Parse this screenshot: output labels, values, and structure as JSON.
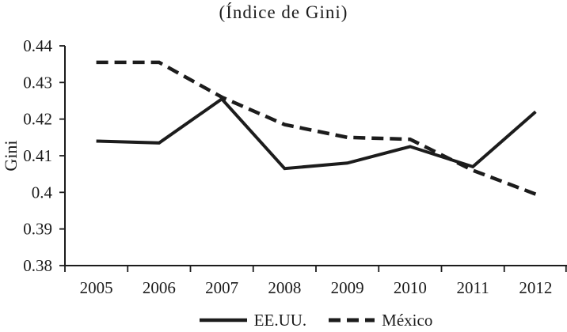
{
  "chart_data": {
    "type": "line",
    "title": "(Índice de Gini)",
    "ylabel": "Gini",
    "xlabel": "",
    "categories": [
      "2005",
      "2006",
      "2007",
      "2008",
      "2009",
      "2010",
      "2011",
      "2012"
    ],
    "series": [
      {
        "name": "EE.UU.",
        "style": "solid",
        "values": [
          0.414,
          0.4135,
          0.4255,
          0.4065,
          0.408,
          0.4125,
          0.407,
          0.422
        ]
      },
      {
        "name": "México",
        "style": "dashed",
        "values": [
          0.4355,
          0.4355,
          0.426,
          0.4185,
          0.415,
          0.4145,
          0.406,
          0.3995
        ]
      }
    ],
    "y_axis": {
      "min": 0.38,
      "max": 0.44,
      "step": 0.01,
      "tick_labels": [
        "0.44",
        "0.43",
        "0.42",
        "0.41",
        "0.4",
        "0.39",
        "0.38"
      ]
    },
    "x_axis": {
      "tick_style": "category-boundaries"
    },
    "grid": false,
    "legend_position": "bottom",
    "line_color": "#1c1c1c",
    "background_color": "#ffffff"
  }
}
